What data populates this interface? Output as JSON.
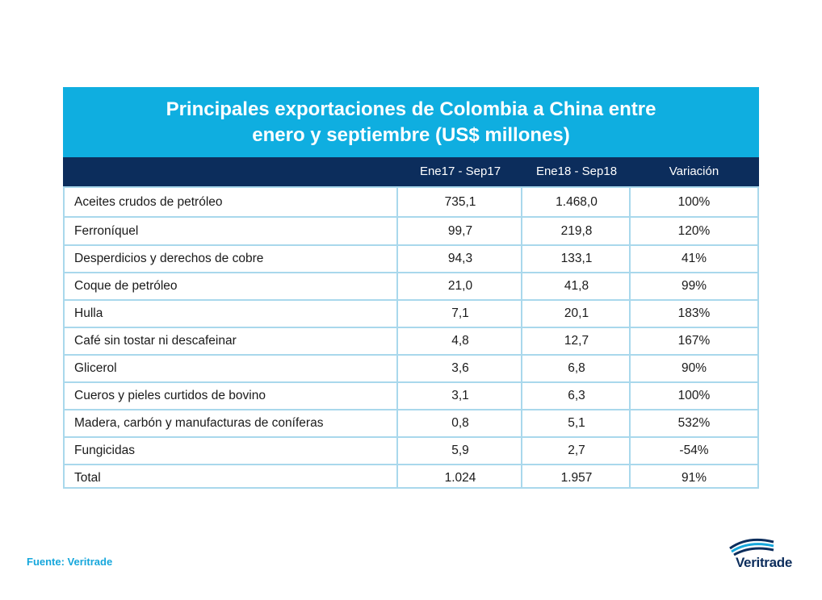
{
  "chart_data": {
    "type": "table",
    "title_lines": [
      "Principales exportaciones de Colombia a China entre",
      "enero y septiembre (US$ millones)"
    ],
    "columns": [
      "",
      "Ene17 - Sep17",
      "Ene18 - Sep18",
      "Variación"
    ],
    "rows": [
      {
        "label": "Aceites crudos de petróleo",
        "v17": "735,1",
        "v18": "1.468,0",
        "var": "100%"
      },
      {
        "label": "Ferroníquel",
        "v17": "99,7",
        "v18": "219,8",
        "var": "120%"
      },
      {
        "label": "Desperdicios y derechos de cobre",
        "v17": "94,3",
        "v18": "133,1",
        "var": "41%"
      },
      {
        "label": "Coque de petróleo",
        "v17": "21,0",
        "v18": "41,8",
        "var": "99%"
      },
      {
        "label": "Hulla",
        "v17": "7,1",
        "v18": "20,1",
        "var": "183%"
      },
      {
        "label": "Café sin tostar ni descafeinar",
        "v17": "4,8",
        "v18": "12,7",
        "var": "167%"
      },
      {
        "label": "Glicerol",
        "v17": "3,6",
        "v18": "6,8",
        "var": "90%"
      },
      {
        "label": "Cueros y pieles curtidos de bovino",
        "v17": "3,1",
        "v18": "6,3",
        "var": "100%"
      },
      {
        "label": "Madera, carbón y manufacturas de coníferas",
        "v17": "0,8",
        "v18": "5,1",
        "var": "532%"
      },
      {
        "label": "Fungicidas",
        "v17": "5,9",
        "v18": "2,7",
        "var": "-54%"
      },
      {
        "label": "Total",
        "v17": "1.024",
        "v18": "1.957",
        "var": "91%"
      }
    ],
    "colors": {
      "title_bg": "#0faee0",
      "header_bg": "#0c2d5c",
      "grid": "#a9d8ec",
      "source": "#16a7dc"
    }
  },
  "footer": {
    "source": "Fuente: Veritrade",
    "logo_text": "Veritrade"
  }
}
